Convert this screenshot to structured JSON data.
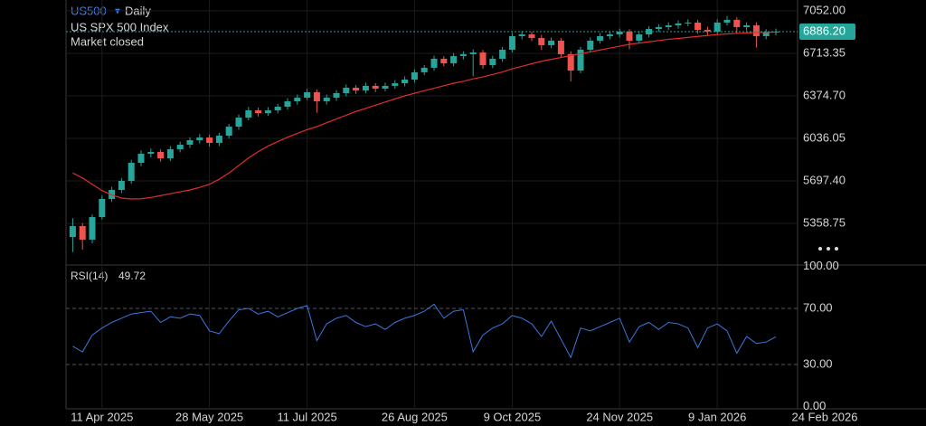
{
  "chart_data": [
    {
      "type": "candlestick",
      "title": "US500",
      "interval": "Daily",
      "name": "US SPX 500 Index",
      "status": "Market closed",
      "categories": [
        null,
        null,
        null,
        "11 Apr 2025",
        null,
        null,
        null,
        null,
        null,
        null,
        null,
        null,
        null,
        null,
        "28 May 2025",
        null,
        null,
        null,
        null,
        null,
        null,
        null,
        null,
        null,
        "11 Jul 2025",
        null,
        null,
        null,
        null,
        null,
        null,
        null,
        null,
        null,
        null,
        "26 Aug 2025",
        null,
        null,
        null,
        null,
        null,
        null,
        null,
        null,
        null,
        "9 Oct 2025",
        null,
        null,
        null,
        null,
        null,
        null,
        null,
        null,
        null,
        null,
        "24 Nov 2025",
        null,
        null,
        null,
        null,
        null,
        null,
        null,
        null,
        null,
        "9 Jan 2026",
        null,
        null,
        null,
        null,
        null,
        null,
        null,
        null,
        null,
        null,
        "24 Feb 2026"
      ],
      "open": [
        5250,
        5337,
        5229,
        5409,
        5553,
        5625,
        5697,
        5841,
        5913,
        5928,
        5877,
        5949,
        5985,
        6021,
        6043,
        6000,
        6057,
        6129,
        6201,
        6259,
        6237,
        6259,
        6288,
        6331,
        6360,
        6403,
        6331,
        6360,
        6396,
        6439,
        6417,
        6454,
        6432,
        6454,
        6475,
        6504,
        6562,
        6598,
        6670,
        6634,
        6691,
        6706,
        6720,
        6619,
        6670,
        6742,
        6850,
        6864,
        6835,
        6778,
        6814,
        6706,
        6576,
        6742,
        6814,
        6850,
        6864,
        6886,
        6814,
        6864,
        6907,
        6922,
        6936,
        6951,
        6958,
        6900,
        6886,
        6958,
        6980,
        6922,
        6936,
        6850,
        6879,
        null,
        null,
        null,
        null,
        null
      ],
      "high": [
        5400,
        5360,
        5430,
        5580,
        5650,
        5720,
        5865,
        5940,
        5955,
        5950,
        5975,
        6010,
        6045,
        6070,
        6065,
        6080,
        6150,
        6225,
        6285,
        6280,
        6285,
        6310,
        6355,
        6385,
        6430,
        6425,
        6385,
        6420,
        6465,
        6460,
        6480,
        6475,
        6480,
        6500,
        6530,
        6585,
        6620,
        6695,
        6690,
        6715,
        6730,
        6745,
        6740,
        6695,
        6765,
        6875,
        6890,
        6885,
        6860,
        6840,
        6835,
        6730,
        6765,
        6840,
        6875,
        6890,
        6910,
        6905,
        6890,
        6930,
        6945,
        6960,
        6975,
        6985,
        6980,
        6925,
        6985,
        7010,
        7000,
        6960,
        6960,
        6905,
        6910,
        null,
        null,
        null,
        null,
        null
      ],
      "low": [
        5130,
        5150,
        5200,
        5390,
        5530,
        5600,
        5675,
        5815,
        5885,
        5850,
        5855,
        5925,
        5960,
        5995,
        5970,
        5975,
        6035,
        6105,
        6180,
        6210,
        6215,
        6235,
        6265,
        6305,
        6340,
        6240,
        6305,
        6335,
        6370,
        6390,
        6395,
        6405,
        6410,
        6430,
        6450,
        6480,
        6540,
        6575,
        6610,
        6610,
        6665,
        6530,
        6590,
        6595,
        6645,
        6720,
        6825,
        6810,
        6740,
        6755,
        6680,
        6490,
        6555,
        6720,
        6790,
        6825,
        6840,
        6745,
        6790,
        6840,
        6885,
        6900,
        6910,
        6930,
        6870,
        6860,
        6865,
        6935,
        6870,
        6895,
        6760,
        6825,
        6855,
        null,
        null,
        null,
        null,
        null
      ],
      "close": [
        5337,
        5229,
        5409,
        5553,
        5625,
        5697,
        5841,
        5913,
        5928,
        5877,
        5949,
        5985,
        6021,
        6043,
        6000,
        6057,
        6129,
        6201,
        6259,
        6237,
        6259,
        6288,
        6331,
        6360,
        6403,
        6331,
        6360,
        6396,
        6439,
        6417,
        6454,
        6432,
        6454,
        6475,
        6504,
        6562,
        6598,
        6670,
        6634,
        6691,
        6706,
        6720,
        6619,
        6670,
        6742,
        6850,
        6864,
        6835,
        6778,
        6814,
        6706,
        6576,
        6742,
        6814,
        6850,
        6864,
        6886,
        6814,
        6864,
        6907,
        6922,
        6936,
        6951,
        6958,
        6900,
        6886,
        6958,
        6980,
        6922,
        6936,
        6850,
        6879,
        6886.2,
        null,
        null,
        null,
        null,
        null
      ],
      "up_color": "#26a69a",
      "down_color": "#ef5350",
      "ma": {
        "color": "#e02d2d",
        "values": [
          5760,
          5720,
          5670,
          5620,
          5585,
          5560,
          5553,
          5555,
          5565,
          5580,
          5595,
          5610,
          5625,
          5645,
          5670,
          5710,
          5760,
          5820,
          5880,
          5930,
          5975,
          6010,
          6045,
          6075,
          6105,
          6130,
          6160,
          6190,
          6220,
          6250,
          6275,
          6300,
          6325,
          6350,
          6375,
          6395,
          6415,
          6435,
          6455,
          6475,
          6490,
          6510,
          6525,
          6545,
          6565,
          6590,
          6610,
          6630,
          6650,
          6665,
          6680,
          6695,
          6710,
          6725,
          6740,
          6755,
          6770,
          6785,
          6795,
          6805,
          6815,
          6825,
          6832,
          6840,
          6848,
          6855,
          6862,
          6868,
          6872,
          6876,
          6878,
          6880,
          6882,
          null,
          null,
          null,
          null,
          null
        ]
      },
      "ylim": [
        5027,
        7138
      ],
      "yticks": [
        {
          "value": 7052,
          "label": "7052.00"
        },
        {
          "value": 6713.35,
          "label": "6713.35"
        },
        {
          "value": 6374.7,
          "label": "6374.70"
        },
        {
          "value": 6036.05,
          "label": "6036.05"
        },
        {
          "value": 5697.4,
          "label": "5697.40"
        },
        {
          "value": 5358.75,
          "label": "5358.75"
        }
      ],
      "last_price": {
        "value": 6886.2,
        "label": "6886.20"
      },
      "grid": true
    },
    {
      "type": "line",
      "title": "RSI(14)",
      "current": 49.72,
      "color": "#3a78e0",
      "values": [
        43,
        39,
        51,
        56,
        60,
        63,
        66,
        67,
        68,
        60,
        64,
        63,
        66,
        65,
        54,
        52,
        61,
        69,
        70,
        66,
        68,
        64,
        67,
        70,
        72,
        47,
        59,
        63,
        65,
        60,
        57,
        59,
        55,
        60,
        63,
        65,
        68,
        73,
        63,
        68,
        69,
        39,
        51,
        56,
        59,
        65,
        63,
        59,
        50,
        61,
        48,
        35,
        56,
        54,
        57,
        60,
        63,
        46,
        57,
        60,
        55,
        60,
        59,
        56,
        42,
        56,
        59,
        54,
        38,
        50,
        45,
        46,
        49.72,
        null,
        null,
        null,
        null,
        null
      ],
      "ylim": [
        0,
        100
      ],
      "yticks": [
        {
          "value": 100,
          "label": "100.00"
        },
        {
          "value": 70,
          "label": "70.00"
        },
        {
          "value": 30,
          "label": "30.00"
        },
        {
          "value": 0,
          "label": "0.00"
        }
      ]
    }
  ]
}
